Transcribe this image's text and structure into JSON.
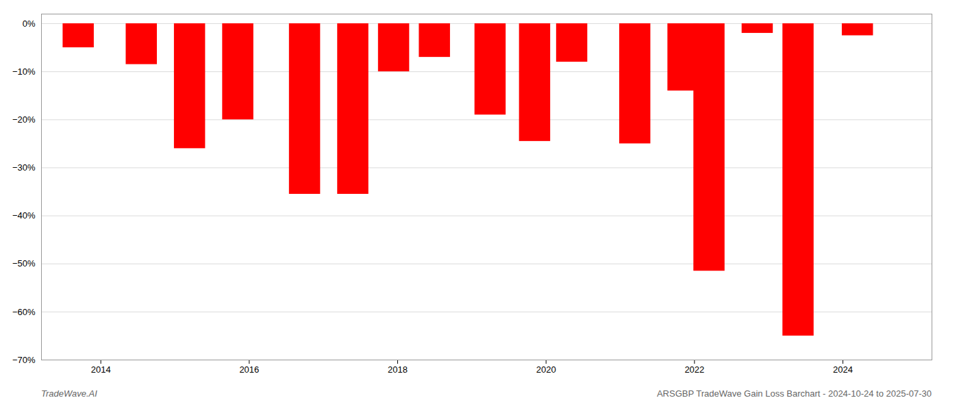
{
  "chart_data": {
    "type": "bar",
    "x": [
      2013.7,
      2014.55,
      2015.2,
      2015.85,
      2016.75,
      2017.4,
      2017.95,
      2018.5,
      2019.25,
      2019.85,
      2020.35,
      2021.2,
      2021.85,
      2022.2,
      2022.85,
      2023.4,
      2024.2
    ],
    "values": [
      -5.0,
      -8.5,
      -26.0,
      -20.0,
      -35.5,
      -35.5,
      -10.0,
      -7.0,
      -19.0,
      -24.5,
      -8.0,
      -25.0,
      -14.0,
      -51.5,
      -2.0,
      -65.0,
      -2.5
    ],
    "color": "#ff0000",
    "xlim": [
      2013.2,
      2025.2
    ],
    "xticks": [
      2014,
      2016,
      2018,
      2020,
      2022,
      2024
    ],
    "ylim": [
      -70,
      2
    ],
    "yticks": [
      {
        "value": 0,
        "label": "0%"
      },
      {
        "value": -10,
        "label": "−10%"
      },
      {
        "value": -20,
        "label": "−20%"
      },
      {
        "value": -30,
        "label": "−30%"
      },
      {
        "value": -40,
        "label": "−40%"
      },
      {
        "value": -50,
        "label": "−50%"
      },
      {
        "value": -60,
        "label": "−60%"
      },
      {
        "value": -70,
        "label": "−70%"
      }
    ],
    "grid": true,
    "annotations": [
      "TradeWave.AI",
      "ARSGBP TradeWave Gain Loss Barchart - 2024-10-24 to 2025-07-30"
    ]
  }
}
